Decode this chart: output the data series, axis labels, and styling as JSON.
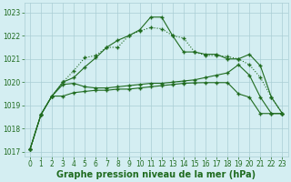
{
  "xlabel": "Graphe pression niveau de la mer (hPa)",
  "x": [
    0,
    1,
    2,
    3,
    4,
    5,
    6,
    7,
    8,
    9,
    10,
    11,
    12,
    13,
    14,
    15,
    16,
    17,
    18,
    19,
    20,
    21,
    22,
    23
  ],
  "series": [
    {
      "name": "dotted_high",
      "y": [
        1017.1,
        1018.6,
        1019.4,
        1020.0,
        1020.5,
        1021.05,
        1021.15,
        1021.5,
        1021.5,
        1022.0,
        1022.2,
        1022.35,
        1022.3,
        1022.0,
        1021.9,
        1021.3,
        1021.15,
        1021.15,
        1021.1,
        1021.0,
        1020.75,
        1020.2,
        1019.35,
        1018.65
      ],
      "style": ":",
      "marker": "+"
    },
    {
      "name": "solid_high",
      "y": [
        1017.1,
        1018.6,
        1019.4,
        1020.0,
        1020.2,
        1020.65,
        1021.05,
        1021.5,
        1021.8,
        1022.0,
        1022.25,
        1022.8,
        1022.8,
        1022.0,
        1021.3,
        1021.3,
        1021.2,
        1021.2,
        1021.0,
        1021.0,
        1021.2,
        1020.7,
        1019.35,
        1018.65
      ],
      "style": "-",
      "marker": "+"
    },
    {
      "name": "solid_mid",
      "y": [
        1017.1,
        1018.6,
        1019.4,
        1019.9,
        1019.95,
        1019.8,
        1019.75,
        1019.75,
        1019.8,
        1019.85,
        1019.9,
        1019.95,
        1019.95,
        1020.0,
        1020.05,
        1020.1,
        1020.2,
        1020.3,
        1020.4,
        1020.75,
        1020.3,
        1019.35,
        1018.65,
        1018.65
      ],
      "style": "-",
      "marker": "+"
    },
    {
      "name": "solid_low",
      "y": [
        1017.1,
        1018.6,
        1019.4,
        1019.4,
        1019.55,
        1019.6,
        1019.65,
        1019.65,
        1019.7,
        1019.7,
        1019.75,
        1019.8,
        1019.85,
        1019.9,
        1019.95,
        1019.97,
        1019.98,
        1019.98,
        1019.98,
        1019.5,
        1019.35,
        1018.65,
        1018.65,
        1018.65
      ],
      "style": "-",
      "marker": "+"
    }
  ],
  "ylim": [
    1016.8,
    1023.4
  ],
  "yticks": [
    1017,
    1018,
    1019,
    1020,
    1021,
    1022,
    1023
  ],
  "xticks": [
    0,
    1,
    2,
    3,
    4,
    5,
    6,
    7,
    8,
    9,
    10,
    11,
    12,
    13,
    14,
    15,
    16,
    17,
    18,
    19,
    20,
    21,
    22,
    23
  ],
  "line_color": "#1f6b1f",
  "bg_color": "#d4eef2",
  "grid_color": "#aacdd4",
  "label_color": "#1f6b1f",
  "tick_fontsize": 5.5,
  "xlabel_fontsize": 7,
  "linewidth": 0.8,
  "markersize": 2.5
}
